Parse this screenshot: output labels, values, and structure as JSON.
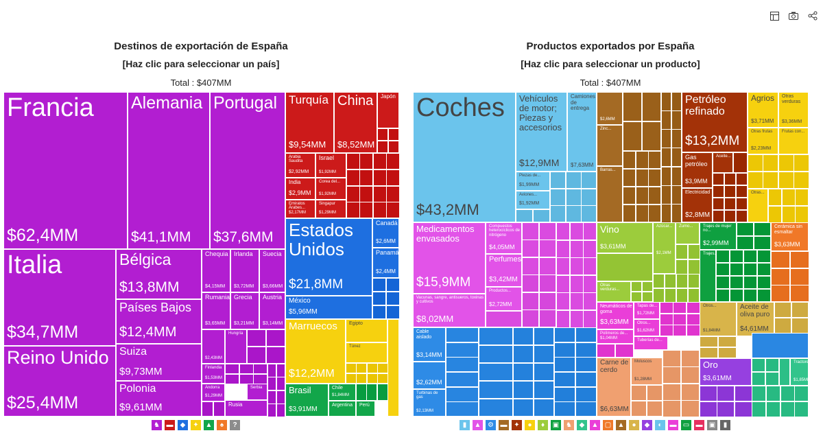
{
  "toolbar": {
    "table_icon": "table-icon",
    "camera_icon": "camera-icon",
    "share_icon": "share-icon"
  },
  "left": {
    "title": "Destinos de exportación de España",
    "subtitle": "[Haz clic para seleccionar un país]",
    "total": "Total : $407MM"
  },
  "right": {
    "title": "Productos exportados por España",
    "subtitle": "[Haz clic para seleccionar un producto]",
    "total": "Total : $407MM"
  },
  "chart_data": [
    {
      "type": "treemap",
      "title": "Destinos de exportación de España",
      "unit": "USD",
      "total_label": "$407MM",
      "groups": [
        {
          "name": "Europa",
          "color": "#b21ed1",
          "items": [
            {
              "name": "Francia",
              "value": "$62,4MM"
            },
            {
              "name": "Alemania",
              "value": "$41,1MM"
            },
            {
              "name": "Portugal",
              "value": "$37,6MM"
            },
            {
              "name": "Italia",
              "value": "$34,7MM"
            },
            {
              "name": "Reino Unido",
              "value": "$25,4MM"
            },
            {
              "name": "Bélgica",
              "value": "$13,8MM"
            },
            {
              "name": "Países Bajos",
              "value": "$12,4MM"
            },
            {
              "name": "Suiza",
              "value": "$9,73MM"
            },
            {
              "name": "Polonia",
              "value": "$9,61MM"
            },
            {
              "name": "Chequia",
              "value": "$4,15MM"
            },
            {
              "name": "Irlanda",
              "value": "$3,72MM"
            },
            {
              "name": "Suecia",
              "value": "$3,66MM"
            },
            {
              "name": "Rumania",
              "value": "$3,65MM"
            },
            {
              "name": "Grecia",
              "value": "$3,21MM"
            },
            {
              "name": "Austria",
              "value": "$3,14MM"
            },
            {
              "name": "Hungría",
              "value": ""
            },
            {
              "name": "",
              "value": "$2,43MM"
            },
            {
              "name": "Finlandia",
              "value": "$1,53MM"
            },
            {
              "name": "Andorra",
              "value": "$1,29MM"
            },
            {
              "name": "Serbia",
              "value": ""
            },
            {
              "name": "Rusia",
              "value": ""
            }
          ]
        },
        {
          "name": "Asia",
          "color": "#cc1a1a",
          "items": [
            {
              "name": "Turquía",
              "value": "$9,54MM"
            },
            {
              "name": "China",
              "value": "$8,52MM"
            },
            {
              "name": "Japón",
              "value": ""
            },
            {
              "name": "Arabia Saudita",
              "value": "$2,92MM"
            },
            {
              "name": "Israel",
              "value": "$1,92MM"
            },
            {
              "name": "India",
              "value": "$2,9MM"
            },
            {
              "name": "Corea del...",
              "value": "$1,92MM"
            },
            {
              "name": "Emiratos Árabes...",
              "value": "$2,17MM"
            },
            {
              "name": "Singapur",
              "value": "$1,29MM"
            }
          ]
        },
        {
          "name": "Norteamérica",
          "color": "#1e6fe0",
          "items": [
            {
              "name": "Estados Unidos",
              "value": "$21,8MM"
            },
            {
              "name": "Canadá",
              "value": "$2,6MM"
            },
            {
              "name": "Panamá",
              "value": "$2,4MM"
            },
            {
              "name": "México",
              "value": "$5,96MM"
            }
          ]
        },
        {
          "name": "África",
          "color": "#f6d10f",
          "items": [
            {
              "name": "Marruecos",
              "value": "$12,2MM"
            },
            {
              "name": "Egipto",
              "value": ""
            },
            {
              "name": "Túnez",
              "value": ""
            }
          ]
        },
        {
          "name": "Sudamérica",
          "color": "#12a64a",
          "items": [
            {
              "name": "Brasil",
              "value": "$3,91MM"
            },
            {
              "name": "Chile",
              "value": "$1,84MM"
            },
            {
              "name": "Argentina",
              "value": ""
            },
            {
              "name": "Perú",
              "value": ""
            }
          ]
        }
      ],
      "legend_icons": [
        "europe-icon",
        "asia-icon",
        "north-america-icon",
        "africa-icon",
        "south-america-icon",
        "oceania-icon",
        "unknown-icon"
      ]
    },
    {
      "type": "treemap",
      "title": "Productos exportados por España",
      "unit": "USD",
      "total_label": "$407MM",
      "groups": [
        {
          "name": "Transporte",
          "color": "#6bc4ec",
          "items": [
            {
              "name": "Coches",
              "value": "$43,2MM"
            },
            {
              "name": "Vehículos de motor; Piezas y accesorios",
              "value": "$12,9MM"
            },
            {
              "name": "Camiones de entrega",
              "value": "$7,63MM"
            },
            {
              "name": "Piezas de...",
              "value": "$1,99MM"
            },
            {
              "name": "Aviones...",
              "value": "$1,92MM"
            }
          ]
        },
        {
          "name": "Químicos",
          "color": "#e253e8",
          "items": [
            {
              "name": "Medicamentos envasados",
              "value": "$15,9MM"
            },
            {
              "name": "Compuestos heterocíclicos de nitrógeno",
              "value": "$4,05MM"
            },
            {
              "name": "Perfumes",
              "value": "$3,42MM"
            },
            {
              "name": "Productos...",
              "value": "$2,72MM"
            },
            {
              "name": "Vacunas, sangre, antisueros, toxinas y cultivos",
              "value": "$8,02MM"
            }
          ]
        },
        {
          "name": "Maquinaria",
          "color": "#2e8be6",
          "items": [
            {
              "name": "Cable aislado",
              "value": "$3,14MM"
            },
            {
              "name": "",
              "value": "$2,62MM"
            },
            {
              "name": "Turbinas de gas",
              "value": "$2,13MM"
            }
          ]
        },
        {
          "name": "Metales",
          "color": "#a46a24",
          "items": [
            {
              "name": "",
              "value": "$2,6MM"
            },
            {
              "name": "Zinc...",
              "value": ""
            },
            {
              "name": "Barras...",
              "value": ""
            }
          ]
        },
        {
          "name": "Productos minerales",
          "color": "#a33208",
          "items": [
            {
              "name": "Petróleo refinado",
              "value": "$13,2MM"
            },
            {
              "name": "Gas petróleo",
              "value": "$3,9MM"
            },
            {
              "name": "Aceite...",
              "value": ""
            },
            {
              "name": "Electricidad",
              "value": "$2,8MM"
            }
          ]
        },
        {
          "name": "Productos vegetales",
          "color": "#f6d10f",
          "items": [
            {
              "name": "Agrios",
              "value": "$3,71MM"
            },
            {
              "name": "Otras verduras",
              "value": "$3,36MM"
            },
            {
              "name": "Otras frutas",
              "value": "$2,23MM"
            },
            {
              "name": "Frutas con...",
              "value": ""
            },
            {
              "name": "Otras...",
              "value": ""
            }
          ]
        },
        {
          "name": "Productos alimenticios",
          "color": "#9ccc3c",
          "items": [
            {
              "name": "Vino",
              "value": "$3,61MM"
            },
            {
              "name": "Azúcar...",
              "value": "$2,1MM"
            },
            {
              "name": "Zumo...",
              "value": ""
            },
            {
              "name": "Otras verduras...",
              "value": ""
            }
          ]
        },
        {
          "name": "Textiles",
          "color": "#0fa040",
          "items": [
            {
              "name": "Trajes de mujer no...",
              "value": "$2,99MM"
            },
            {
              "name": "Trajes...",
              "value": ""
            }
          ]
        },
        {
          "name": "Piedra y vidrio",
          "color": "#f07828",
          "items": [
            {
              "name": "Cerámica sin esmaltar",
              "value": "$3,63MM"
            }
          ]
        },
        {
          "name": "Plásticos y cauchos",
          "color": "#ea3ed8",
          "items": [
            {
              "name": "Neumáticos de goma",
              "value": "$3,63MM"
            },
            {
              "name": "Tapas de...",
              "value": "$1,72MM"
            },
            {
              "name": "Otros...",
              "value": "$1,62MM"
            },
            {
              "name": "Polímeros de...",
              "value": "$1,04MM"
            },
            {
              "name": "Tuberías de...",
              "value": ""
            }
          ]
        },
        {
          "name": "Animales",
          "color": "#f0a070",
          "items": [
            {
              "name": "Carne de cerdo",
              "value": "$6,63MM"
            },
            {
              "name": "Moluscos",
              "value": "$1,28MM"
            }
          ]
        },
        {
          "name": "Grasas animales y vegetales",
          "color": "#d8b44a",
          "items": [
            {
              "name": "Aceite de oliva puro",
              "value": "$4,61MM"
            },
            {
              "name": "Otros...",
              "value": "$1,84MM"
            }
          ]
        },
        {
          "name": "Metales preciosos",
          "color": "#9640e0",
          "items": [
            {
              "name": "Oro",
              "value": "$3,61MM"
            }
          ]
        },
        {
          "name": "Calzado",
          "color": "#32c48c",
          "items": [
            {
              "name": "Tractores...",
              "value": "$1,85MM"
            }
          ]
        }
      ],
      "legend_icons": [
        "textiles-icon",
        "chemicals-icon",
        "machinery-icon",
        "metals-icon",
        "minerals-icon",
        "vegetables-icon",
        "foodstuffs-icon",
        "plastics-icon",
        "animals-icon",
        "footwear-icon",
        "instruments-icon",
        "stone-icon",
        "weapons-icon",
        "animal-fats-icon",
        "precious-metals-icon",
        "transport-icon",
        "paper-icon",
        "wood-icon",
        "hides-icon",
        "art-icon",
        "misc-icon"
      ]
    }
  ]
}
